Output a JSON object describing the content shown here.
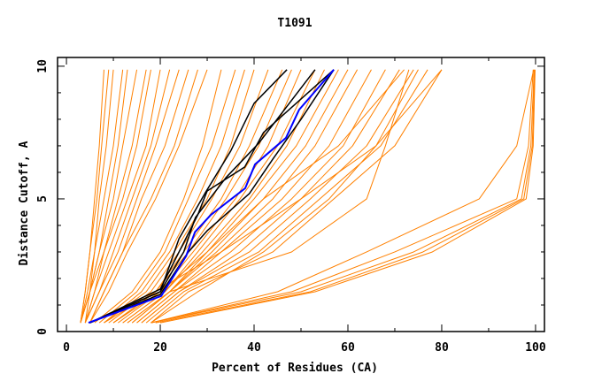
{
  "chart_data": {
    "type": "line",
    "title": "T1091",
    "xlabel": "Percent of Residues (CA)",
    "ylabel": "Distance Cutoff, A",
    "xlim": [
      -1.9,
      101.9
    ],
    "ylim": [
      0,
      10.33
    ],
    "x_ticks": [
      "0",
      "20",
      "40",
      "60",
      "80",
      "100"
    ],
    "y_ticks": [
      "0",
      "5",
      "10"
    ],
    "grid": false,
    "colors": {
      "other_models": "#ff8000",
      "highlight_models": "#000000",
      "best_model": "#0000ff"
    },
    "other_models": {
      "y_levels": [
        0.33,
        1.5,
        3,
        5,
        7,
        9.87
      ],
      "x_at_levels": [
        [
          3,
          4,
          5,
          6,
          7,
          8
        ],
        [
          3,
          4,
          5,
          6.5,
          7.5,
          9
        ],
        [
          3,
          4.5,
          6,
          7,
          8.5,
          10
        ],
        [
          3,
          5,
          6,
          8,
          10,
          12
        ],
        [
          4,
          5,
          7,
          9,
          11,
          13
        ],
        [
          3,
          5,
          7,
          10,
          12,
          15
        ],
        [
          4,
          6,
          8,
          11,
          14,
          17
        ],
        [
          3,
          5,
          8,
          12,
          15,
          18
        ],
        [
          4,
          6,
          9,
          13,
          17,
          20
        ],
        [
          4,
          7,
          10,
          14,
          18,
          22
        ],
        [
          4,
          7,
          11,
          15,
          19,
          24
        ],
        [
          5,
          8,
          12,
          16,
          21,
          26
        ],
        [
          5,
          8,
          12,
          18,
          23,
          28
        ],
        [
          5,
          9,
          13,
          19,
          24,
          30
        ],
        [
          6,
          14,
          20,
          25,
          29,
          33
        ],
        [
          7,
          15,
          21,
          26,
          31,
          36
        ],
        [
          8,
          16,
          22,
          28,
          33,
          38
        ],
        [
          8,
          17,
          23,
          30,
          35,
          40
        ],
        [
          9,
          18,
          24,
          31,
          37,
          43
        ],
        [
          10,
          19,
          25,
          33,
          39,
          46
        ],
        [
          10,
          19,
          26,
          34,
          41,
          48
        ],
        [
          11,
          20,
          27,
          36,
          43,
          50
        ],
        [
          12,
          21,
          28,
          37,
          45,
          53
        ],
        [
          12,
          21,
          29,
          39,
          47,
          55
        ],
        [
          13,
          22,
          30,
          40,
          49,
          58
        ],
        [
          13,
          22,
          31,
          42,
          51,
          60
        ],
        [
          14,
          22,
          32,
          44,
          53,
          62
        ],
        [
          15,
          23,
          33,
          46,
          56,
          65
        ],
        [
          15,
          23,
          35,
          48,
          59,
          68
        ],
        [
          16,
          24,
          37,
          50,
          61,
          71
        ],
        [
          16,
          24,
          39,
          52,
          64,
          74
        ],
        [
          17,
          25,
          41,
          54,
          67,
          77
        ],
        [
          18,
          26,
          44,
          57,
          70,
          80
        ],
        [
          18,
          28,
          42,
          56,
          66,
          75
        ],
        [
          10,
          20,
          30,
          42,
          58,
          72
        ],
        [
          8,
          19,
          33,
          50,
          66,
          80
        ],
        [
          14,
          22,
          48,
          64,
          68,
          73
        ],
        [
          18,
          48,
          70,
          96,
          98.5,
          99.5
        ],
        [
          18,
          50,
          74,
          97,
          99,
          99.7
        ],
        [
          19,
          52,
          76,
          97.5,
          99.3,
          99.8
        ],
        [
          20,
          53,
          78,
          98,
          99.5,
          99.9
        ],
        [
          18,
          45,
          64,
          88,
          96,
          99.6
        ]
      ]
    },
    "highlight_models": [
      [
        [
          5,
          0.33
        ],
        [
          20,
          1.5
        ],
        [
          24,
          3.5
        ],
        [
          29.5,
          5.2
        ],
        [
          35,
          6.8
        ],
        [
          40,
          8.6
        ],
        [
          47,
          9.87
        ]
      ],
      [
        [
          5,
          0.33
        ],
        [
          20,
          1.5
        ],
        [
          25,
          3
        ],
        [
          27.5,
          4.3
        ],
        [
          34,
          5.8
        ],
        [
          41,
          7.1
        ],
        [
          53,
          9.87
        ]
      ],
      [
        [
          5,
          0.33
        ],
        [
          20,
          1.4
        ],
        [
          26,
          3.0
        ],
        [
          30,
          3.8
        ],
        [
          39,
          5.2
        ],
        [
          44,
          6.5
        ],
        [
          50,
          8
        ],
        [
          57,
          9.87
        ]
      ],
      [
        [
          5,
          0.33
        ],
        [
          20,
          1.6
        ],
        [
          28,
          4.4
        ],
        [
          30,
          5.3
        ],
        [
          38,
          6.2
        ],
        [
          42,
          7.5
        ],
        [
          57,
          9.87
        ]
      ]
    ],
    "best_model": [
      [
        4.7,
        0.33
      ],
      [
        20.2,
        1.34
      ],
      [
        25.5,
        2.84
      ],
      [
        27.4,
        3.75
      ],
      [
        30.8,
        4.4
      ],
      [
        38.1,
        5.4
      ],
      [
        40.2,
        6.3
      ],
      [
        46.8,
        7.3
      ],
      [
        49.6,
        8.36
      ],
      [
        57,
        9.87
      ]
    ]
  }
}
